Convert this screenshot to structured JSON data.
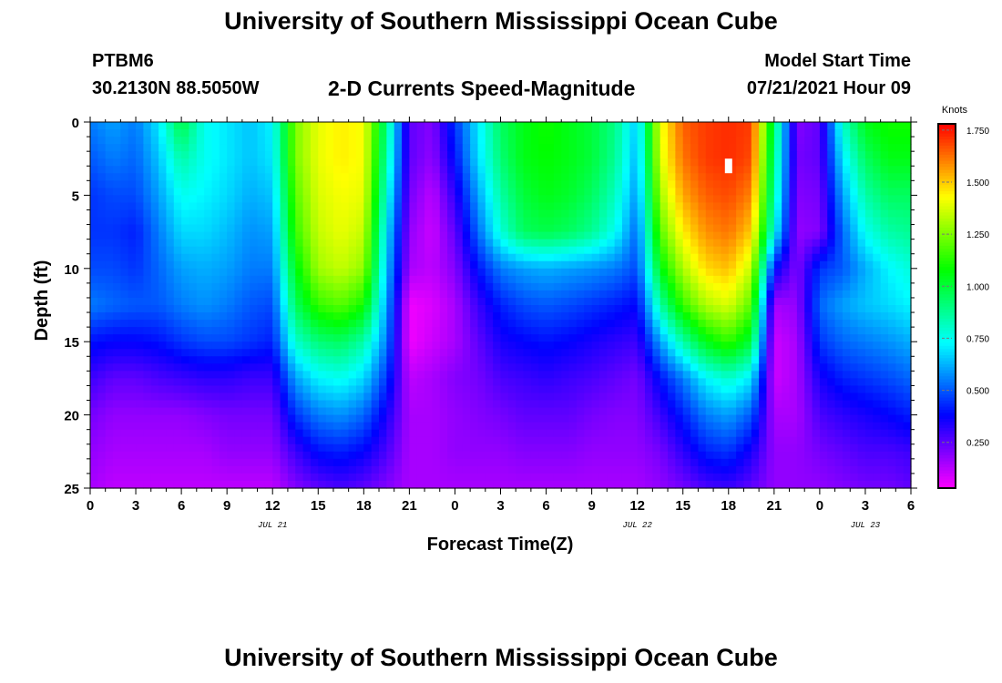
{
  "header": {
    "title_top": "University of Southern Mississippi Ocean Cube",
    "title_bottom": "University of Southern Mississippi Ocean Cube",
    "station_id": "PTBM6",
    "station_coords": "30.2130N  88.5050W",
    "model_start_label": "Model Start Time",
    "model_start_value": "07/21/2021 Hour 09"
  },
  "chart_data": {
    "type": "heatmap",
    "title": "2-D Currents Speed-Magnitude",
    "xlabel": "Forecast Time(Z)",
    "ylabel": "Depth (ft)",
    "x_range_hours": [
      0,
      54
    ],
    "y_range_ft": [
      0,
      25
    ],
    "y_inverted": true,
    "x_tick_labels": [
      "0",
      "3",
      "6",
      "9",
      "12",
      "15",
      "18",
      "21",
      "0",
      "3",
      "6",
      "9",
      "12",
      "15",
      "18",
      "21",
      "0",
      "3",
      "6"
    ],
    "y_tick_labels": [
      "0",
      "5",
      "10",
      "15",
      "20",
      "25"
    ],
    "date_labels": [
      {
        "text": "JUL 21",
        "hour": 12
      },
      {
        "text": "JUL 22",
        "hour": 36
      },
      {
        "text": "JUL 23",
        "hour": 51
      }
    ],
    "colorbar": {
      "title": "Knots",
      "min": 0.03,
      "max": 1.78,
      "tick_labels": [
        "1.750",
        "1.500",
        "1.250",
        "1.000",
        "0.750",
        "0.500",
        "0.250"
      ],
      "tick_values": [
        1.75,
        1.5,
        1.25,
        1.0,
        0.75,
        0.5,
        0.25
      ]
    },
    "time_hours": [
      0,
      1.5,
      3,
      4.5,
      6,
      7.5,
      9,
      10.5,
      12,
      13.5,
      15,
      16.5,
      18,
      19.5,
      21,
      22.5,
      24,
      25.5,
      27,
      28.5,
      30,
      31.5,
      33,
      34.5,
      36,
      37.5,
      39,
      40.5,
      42,
      43.5,
      45,
      46.5,
      48,
      49.5,
      51,
      52.5,
      54
    ],
    "depth_ft": [
      0,
      2.5,
      5,
      7.5,
      10,
      12.5,
      15,
      17.5,
      20,
      22.5,
      25
    ],
    "speed_knots": [
      [
        0.55,
        0.6,
        0.55,
        0.7,
        1.0,
        0.75,
        0.7,
        0.65,
        0.72,
        1.25,
        1.4,
        1.45,
        1.42,
        0.9,
        0.25,
        0.2,
        0.45,
        0.7,
        0.95,
        1.05,
        1.1,
        1.05,
        1.0,
        0.9,
        0.65,
        1.4,
        1.65,
        1.7,
        1.72,
        1.7,
        0.95,
        0.2,
        0.25,
        0.8,
        1.05,
        1.1,
        1.1
      ],
      [
        0.5,
        0.55,
        0.52,
        0.65,
        0.85,
        0.75,
        0.7,
        0.65,
        0.7,
        1.25,
        1.4,
        1.45,
        1.42,
        0.85,
        0.25,
        0.18,
        0.4,
        0.68,
        0.92,
        1.05,
        1.08,
        1.05,
        1.0,
        0.88,
        0.62,
        1.38,
        1.62,
        1.7,
        1.72,
        1.68,
        0.9,
        0.22,
        0.25,
        0.7,
        0.95,
        1.05,
        1.05
      ],
      [
        0.45,
        0.48,
        0.48,
        0.6,
        0.75,
        0.72,
        0.68,
        0.62,
        0.65,
        1.2,
        1.38,
        1.42,
        1.4,
        0.78,
        0.22,
        0.12,
        0.32,
        0.6,
        0.85,
        1.0,
        1.05,
        1.02,
        0.95,
        0.82,
        0.58,
        1.3,
        1.55,
        1.65,
        1.68,
        1.6,
        0.85,
        0.2,
        0.22,
        0.6,
        0.85,
        0.95,
        0.95
      ],
      [
        0.45,
        0.45,
        0.42,
        0.55,
        0.68,
        0.68,
        0.64,
        0.58,
        0.6,
        1.15,
        1.35,
        1.4,
        1.35,
        0.7,
        0.18,
        0.1,
        0.25,
        0.52,
        0.78,
        0.95,
        0.98,
        0.95,
        0.88,
        0.75,
        0.52,
        1.2,
        1.45,
        1.58,
        1.62,
        1.5,
        0.75,
        0.18,
        0.2,
        0.52,
        0.75,
        0.85,
        0.88
      ],
      [
        0.48,
        0.48,
        0.45,
        0.52,
        0.6,
        0.62,
        0.6,
        0.55,
        0.55,
        1.05,
        1.3,
        1.35,
        1.28,
        0.65,
        0.15,
        0.12,
        0.2,
        0.4,
        0.55,
        0.6,
        0.62,
        0.6,
        0.58,
        0.55,
        0.48,
        1.05,
        1.32,
        1.48,
        1.52,
        1.35,
        0.4,
        0.2,
        0.45,
        0.5,
        0.62,
        0.72,
        0.78
      ],
      [
        0.55,
        0.52,
        0.5,
        0.5,
        0.55,
        0.58,
        0.55,
        0.5,
        0.48,
        0.95,
        1.15,
        1.2,
        1.1,
        0.6,
        0.05,
        0.08,
        0.15,
        0.3,
        0.42,
        0.48,
        0.5,
        0.48,
        0.45,
        0.42,
        0.38,
        0.85,
        1.15,
        1.32,
        1.38,
        1.2,
        0.15,
        0.18,
        0.52,
        0.6,
        0.65,
        0.68,
        0.72
      ],
      [
        0.4,
        0.38,
        0.38,
        0.4,
        0.45,
        0.48,
        0.48,
        0.45,
        0.42,
        0.8,
        0.92,
        0.95,
        0.85,
        0.55,
        0.05,
        0.1,
        0.15,
        0.25,
        0.35,
        0.38,
        0.4,
        0.38,
        0.35,
        0.32,
        0.3,
        0.6,
        0.85,
        1.05,
        1.15,
        1.0,
        0.1,
        0.15,
        0.45,
        0.52,
        0.55,
        0.58,
        0.62
      ],
      [
        0.3,
        0.25,
        0.25,
        0.28,
        0.3,
        0.32,
        0.32,
        0.3,
        0.3,
        0.6,
        0.72,
        0.75,
        0.68,
        0.45,
        0.12,
        0.15,
        0.2,
        0.22,
        0.28,
        0.3,
        0.32,
        0.3,
        0.28,
        0.25,
        0.22,
        0.4,
        0.55,
        0.72,
        0.8,
        0.7,
        0.1,
        0.15,
        0.35,
        0.42,
        0.45,
        0.48,
        0.52
      ],
      [
        0.22,
        0.18,
        0.18,
        0.18,
        0.18,
        0.2,
        0.22,
        0.22,
        0.22,
        0.45,
        0.55,
        0.58,
        0.52,
        0.35,
        0.15,
        0.15,
        0.18,
        0.2,
        0.22,
        0.25,
        0.25,
        0.25,
        0.22,
        0.2,
        0.2,
        0.3,
        0.42,
        0.55,
        0.6,
        0.5,
        0.15,
        0.15,
        0.28,
        0.32,
        0.35,
        0.38,
        0.42
      ],
      [
        0.18,
        0.15,
        0.15,
        0.15,
        0.15,
        0.15,
        0.18,
        0.18,
        0.18,
        0.3,
        0.4,
        0.42,
        0.38,
        0.28,
        0.15,
        0.15,
        0.18,
        0.18,
        0.18,
        0.2,
        0.2,
        0.2,
        0.18,
        0.18,
        0.18,
        0.22,
        0.32,
        0.42,
        0.45,
        0.35,
        0.18,
        0.18,
        0.22,
        0.25,
        0.28,
        0.28,
        0.3
      ],
      [
        0.15,
        0.12,
        0.12,
        0.12,
        0.12,
        0.12,
        0.12,
        0.12,
        0.12,
        0.2,
        0.25,
        0.28,
        0.25,
        0.2,
        0.15,
        0.15,
        0.15,
        0.15,
        0.15,
        0.15,
        0.15,
        0.15,
        0.15,
        0.15,
        0.15,
        0.18,
        0.22,
        0.28,
        0.3,
        0.25,
        0.18,
        0.18,
        0.18,
        0.2,
        0.22,
        0.22,
        0.25
      ]
    ],
    "marker": {
      "hour": 42,
      "depth_ft": 3
    }
  }
}
